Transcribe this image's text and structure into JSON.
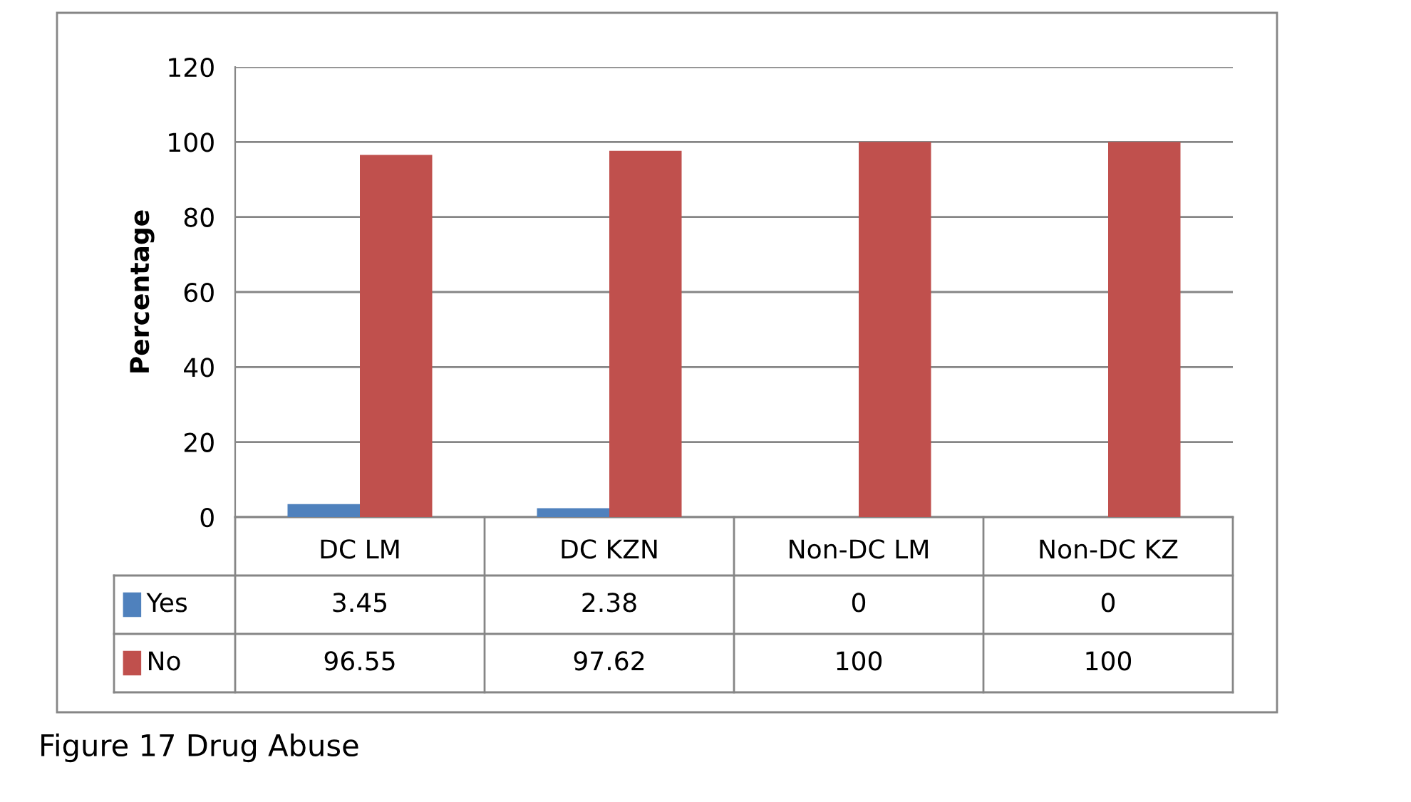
{
  "chart_data": {
    "type": "bar",
    "ylabel": "Percentage",
    "categories": [
      "DC LM",
      "DC KZN",
      "Non-DC LM",
      "Non-DC KZ"
    ],
    "series": [
      {
        "name": "Yes",
        "color": "#4f81bd",
        "values": [
          3.45,
          2.38,
          0,
          0
        ]
      },
      {
        "name": "No",
        "color": "#c0504d",
        "values": [
          96.55,
          97.62,
          100,
          100
        ]
      }
    ],
    "ylim": [
      0,
      120
    ],
    "yticks": [
      0,
      20,
      40,
      60,
      80,
      100,
      120
    ],
    "grid": "y",
    "data_labels": true,
    "legend": "bottom",
    "annotations": [
      "Figure 17 Drug Abuse"
    ]
  }
}
